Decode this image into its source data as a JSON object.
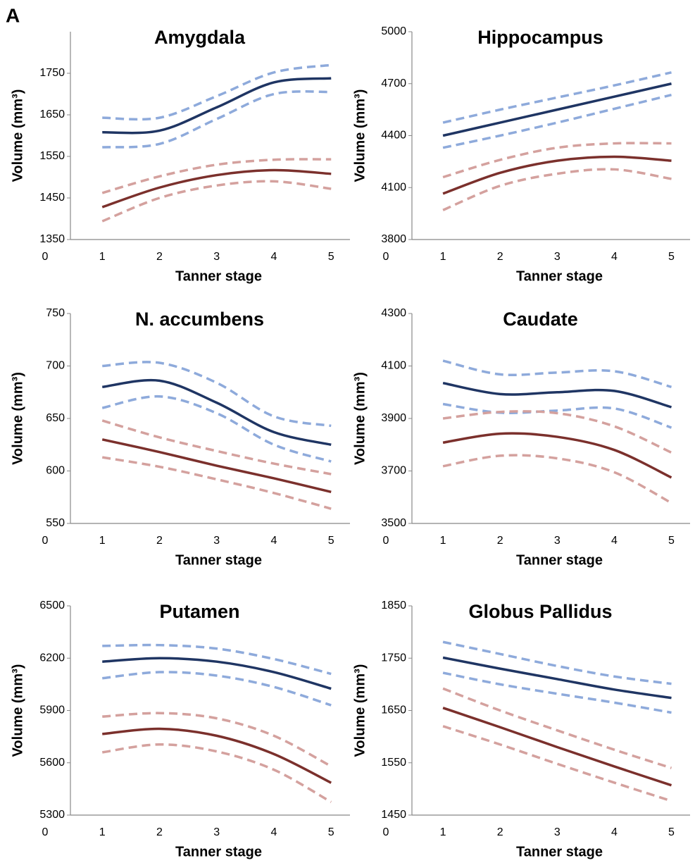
{
  "panel_label": "A",
  "chart_data": [
    {
      "type": "line",
      "title": "Amygdala",
      "x_label": "Tanner stage",
      "y_label": "Volume (mm³)",
      "x": [
        1,
        2,
        3,
        4,
        5
      ],
      "xlim": [
        0,
        5.5
      ],
      "xticks": [
        0,
        1,
        2,
        3,
        4,
        5
      ],
      "ylim": [
        1350,
        1850
      ],
      "yticks": [
        1350,
        1450,
        1550,
        1650,
        1750
      ],
      "series": [
        {
          "color": "#8eaadb",
          "dashed": true,
          "values": [
            1643,
            1643,
            1695,
            1752,
            1770
          ]
        },
        {
          "color": "#8eaadb",
          "dashed": true,
          "values": [
            1572,
            1580,
            1640,
            1700,
            1705
          ]
        },
        {
          "color": "#1f3563",
          "dashed": false,
          "values": [
            1608,
            1612,
            1668,
            1728,
            1738
          ]
        },
        {
          "color": "#d4a19e",
          "dashed": true,
          "values": [
            1462,
            1502,
            1530,
            1542,
            1543
          ]
        },
        {
          "color": "#d4a19e",
          "dashed": true,
          "values": [
            1394,
            1450,
            1480,
            1490,
            1472
          ]
        },
        {
          "color": "#7b302c",
          "dashed": false,
          "values": [
            1428,
            1475,
            1505,
            1517,
            1508
          ]
        }
      ]
    },
    {
      "type": "line",
      "title": "Hippocampus",
      "x_label": "Tanner stage",
      "y_label": "Volume (mm³)",
      "x": [
        1,
        2,
        3,
        4,
        5
      ],
      "xlim": [
        0,
        5.5
      ],
      "xticks": [
        0,
        1,
        2,
        3,
        4,
        5
      ],
      "ylim": [
        3800,
        5000
      ],
      "yticks": [
        3800,
        4100,
        4400,
        4700,
        5000
      ],
      "series": [
        {
          "color": "#8eaadb",
          "dashed": true,
          "values": [
            4475,
            4550,
            4620,
            4690,
            4765
          ]
        },
        {
          "color": "#8eaadb",
          "dashed": true,
          "values": [
            4330,
            4400,
            4475,
            4555,
            4635
          ]
        },
        {
          "color": "#1f3563",
          "dashed": false,
          "values": [
            4400,
            4475,
            4550,
            4625,
            4700
          ]
        },
        {
          "color": "#d4a19e",
          "dashed": true,
          "values": [
            4160,
            4260,
            4330,
            4355,
            4355
          ]
        },
        {
          "color": "#d4a19e",
          "dashed": true,
          "values": [
            3970,
            4110,
            4180,
            4205,
            4150
          ]
        },
        {
          "color": "#7b302c",
          "dashed": false,
          "values": [
            4065,
            4185,
            4255,
            4278,
            4255
          ]
        }
      ]
    },
    {
      "type": "line",
      "title": "N. accumbens",
      "x_label": "Tanner stage",
      "y_label": "Volume (mm³)",
      "x": [
        1,
        2,
        3,
        4,
        5
      ],
      "xlim": [
        0,
        5.5
      ],
      "xticks": [
        0,
        1,
        2,
        3,
        4,
        5
      ],
      "ylim": [
        550,
        750
      ],
      "yticks": [
        550,
        600,
        650,
        700,
        750
      ],
      "series": [
        {
          "color": "#8eaadb",
          "dashed": true,
          "values": [
            700,
            703,
            684,
            652,
            643
          ]
        },
        {
          "color": "#8eaadb",
          "dashed": true,
          "values": [
            660,
            671,
            655,
            625,
            609
          ]
        },
        {
          "color": "#1f3563",
          "dashed": false,
          "values": [
            680,
            686,
            665,
            637,
            625
          ]
        },
        {
          "color": "#d4a19e",
          "dashed": true,
          "values": [
            648,
            632,
            619,
            607,
            597
          ]
        },
        {
          "color": "#d4a19e",
          "dashed": true,
          "values": [
            613,
            604,
            592,
            579,
            564
          ]
        },
        {
          "color": "#7b302c",
          "dashed": false,
          "values": [
            630,
            618,
            605,
            593,
            580
          ]
        }
      ]
    },
    {
      "type": "line",
      "title": "Caudate",
      "x_label": "Tanner stage",
      "y_label": "Volume (mm³)",
      "x": [
        1,
        2,
        3,
        4,
        5
      ],
      "xlim": [
        0,
        5.5
      ],
      "xticks": [
        0,
        1,
        2,
        3,
        4,
        5
      ],
      "ylim": [
        3500,
        4300
      ],
      "yticks": [
        3500,
        3700,
        3900,
        4100,
        4300
      ],
      "series": [
        {
          "color": "#8eaadb",
          "dashed": true,
          "values": [
            4120,
            4068,
            4075,
            4080,
            4020
          ]
        },
        {
          "color": "#8eaadb",
          "dashed": true,
          "values": [
            3955,
            3922,
            3930,
            3938,
            3865
          ]
        },
        {
          "color": "#1f3563",
          "dashed": false,
          "values": [
            4035,
            3993,
            4000,
            4005,
            3943
          ]
        },
        {
          "color": "#d4a19e",
          "dashed": true,
          "values": [
            3900,
            3925,
            3920,
            3870,
            3770
          ]
        },
        {
          "color": "#d4a19e",
          "dashed": true,
          "values": [
            3718,
            3758,
            3748,
            3695,
            3578
          ]
        },
        {
          "color": "#7b302c",
          "dashed": false,
          "values": [
            3808,
            3842,
            3830,
            3780,
            3675
          ]
        }
      ]
    },
    {
      "type": "line",
      "title": "Putamen",
      "x_label": "Tanner stage",
      "y_label": "Volume (mm³)",
      "x": [
        1,
        2,
        3,
        4,
        5
      ],
      "xlim": [
        0,
        5.5
      ],
      "xticks": [
        0,
        1,
        2,
        3,
        4,
        5
      ],
      "ylim": [
        5300,
        6500
      ],
      "yticks": [
        5300,
        5600,
        5900,
        6200,
        6500
      ],
      "series": [
        {
          "color": "#8eaadb",
          "dashed": true,
          "values": [
            6270,
            6275,
            6255,
            6195,
            6110
          ]
        },
        {
          "color": "#8eaadb",
          "dashed": true,
          "values": [
            6085,
            6120,
            6100,
            6035,
            5930
          ]
        },
        {
          "color": "#1f3563",
          "dashed": false,
          "values": [
            6180,
            6200,
            6180,
            6120,
            6025
          ]
        },
        {
          "color": "#d4a19e",
          "dashed": true,
          "values": [
            5865,
            5885,
            5855,
            5755,
            5580
          ]
        },
        {
          "color": "#d4a19e",
          "dashed": true,
          "values": [
            5660,
            5705,
            5665,
            5560,
            5375
          ]
        },
        {
          "color": "#7b302c",
          "dashed": false,
          "values": [
            5765,
            5795,
            5755,
            5650,
            5485
          ]
        }
      ]
    },
    {
      "type": "line",
      "title": "Globus Pallidus",
      "x_label": "Tanner stage",
      "y_label": "Volume (mm³)",
      "x": [
        1,
        2,
        3,
        4,
        5
      ],
      "xlim": [
        0,
        5.5
      ],
      "xticks": [
        0,
        1,
        2,
        3,
        4,
        5
      ],
      "ylim": [
        1450,
        1850
      ],
      "yticks": [
        1450,
        1550,
        1650,
        1750,
        1850
      ],
      "series": [
        {
          "color": "#8eaadb",
          "dashed": true,
          "values": [
            1781,
            1758,
            1735,
            1715,
            1701
          ]
        },
        {
          "color": "#8eaadb",
          "dashed": true,
          "values": [
            1722,
            1700,
            1682,
            1665,
            1646
          ]
        },
        {
          "color": "#1f3563",
          "dashed": false,
          "values": [
            1751,
            1730,
            1710,
            1690,
            1674
          ]
        },
        {
          "color": "#d4a19e",
          "dashed": true,
          "values": [
            1692,
            1650,
            1612,
            1575,
            1540
          ]
        },
        {
          "color": "#d4a19e",
          "dashed": true,
          "values": [
            1620,
            1585,
            1548,
            1512,
            1477
          ]
        },
        {
          "color": "#7b302c",
          "dashed": false,
          "values": [
            1655,
            1618,
            1580,
            1543,
            1507
          ]
        }
      ]
    }
  ]
}
